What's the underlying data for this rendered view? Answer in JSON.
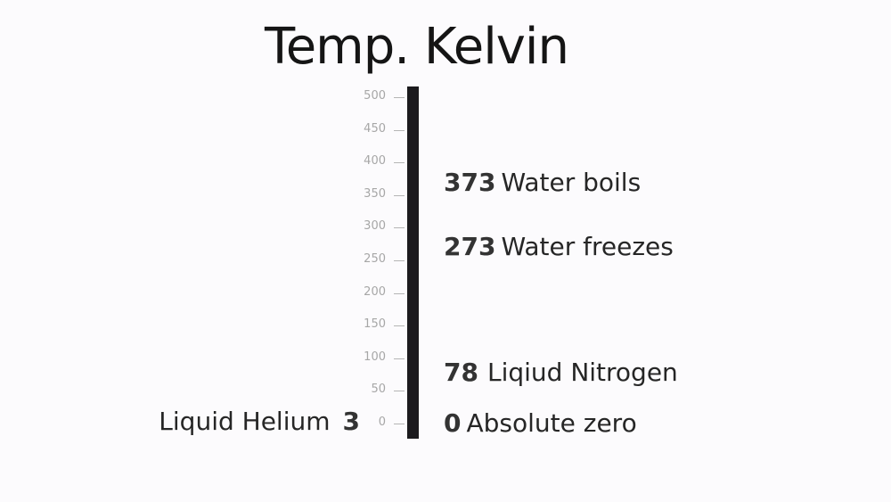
{
  "title": "Temp. Kelvin",
  "scale": {
    "ticks": [
      0,
      50,
      100,
      150,
      200,
      250,
      300,
      350,
      400,
      450,
      500
    ],
    "min": 0,
    "max": 500
  },
  "annotations_right": [
    {
      "value": "373",
      "label": "Water boils"
    },
    {
      "value": "273",
      "label": "Water freezes"
    },
    {
      "value": "78",
      "label": "Liqiud Nitrogen"
    },
    {
      "value": "0",
      "label": "Absolute zero"
    }
  ],
  "annotation_left": {
    "value": "3",
    "label": "Liquid Helium"
  },
  "colors": {
    "bar": "#1b1a1d",
    "tick": "#a7a7a7",
    "background": "#fcfbfd"
  }
}
